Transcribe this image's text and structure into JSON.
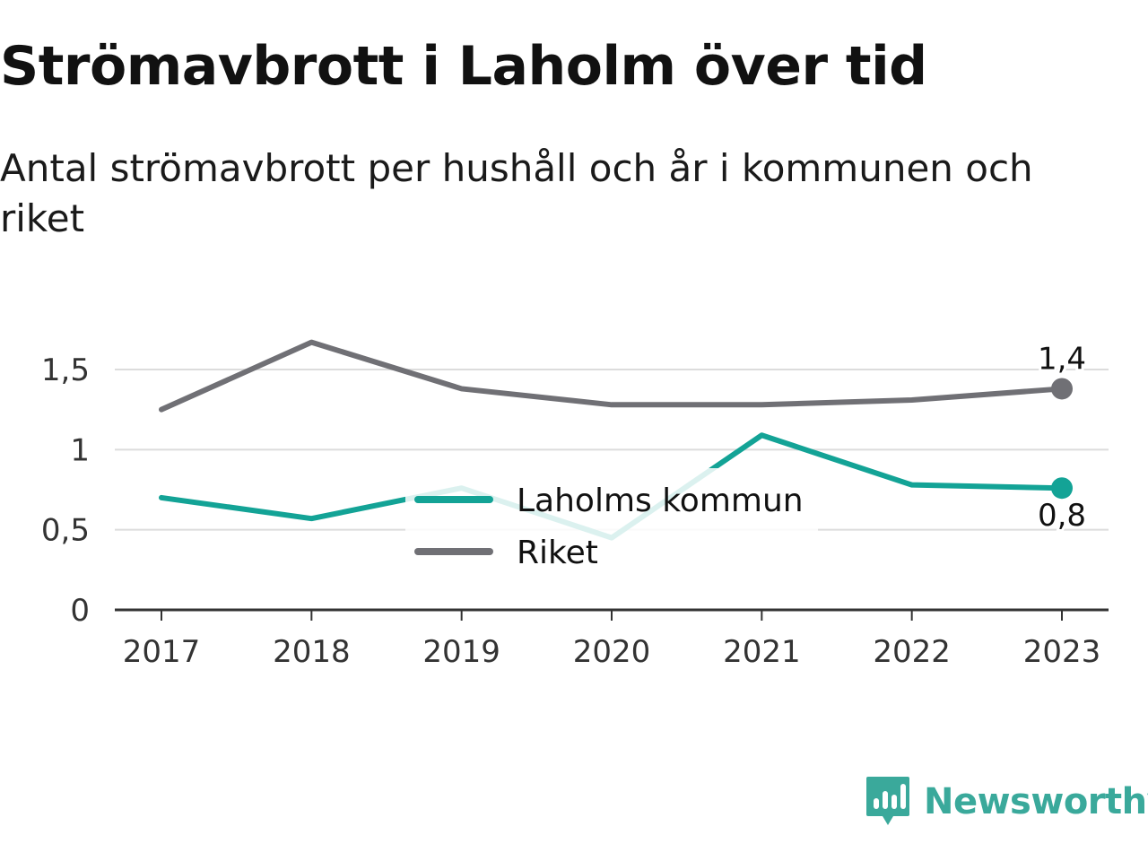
{
  "chart_data": {
    "type": "line",
    "title": "Strömavbrott i Laholm över tid",
    "subtitle": "Antal strömavbrott per hushåll och år i kommunen och riket",
    "categories": [
      "2017",
      "2018",
      "2019",
      "2020",
      "2021",
      "2022",
      "2023"
    ],
    "series": [
      {
        "name": "Laholms kommun",
        "values": [
          0.7,
          0.57,
          0.76,
          0.45,
          1.09,
          0.78,
          0.76
        ],
        "color": "#13a396",
        "end_label": "0,8"
      },
      {
        "name": "Riket",
        "values": [
          1.25,
          1.67,
          1.38,
          1.28,
          1.28,
          1.31,
          1.38
        ],
        "color": "#707075",
        "end_label": "1,4"
      }
    ],
    "ylim": [
      0,
      1.5
    ],
    "yticks": [
      {
        "value": 0,
        "label": "0"
      },
      {
        "value": 0.5,
        "label": "0,5"
      },
      {
        "value": 1,
        "label": "1"
      },
      {
        "value": 1.5,
        "label": "1,5"
      }
    ],
    "xlabel": "",
    "ylabel": "",
    "grid": true,
    "legend_position": "center"
  },
  "branding": {
    "logo_text": "Newsworthy",
    "logo_icon": "bar-chart-speech-bubble-icon",
    "color": "#3aa99b"
  }
}
